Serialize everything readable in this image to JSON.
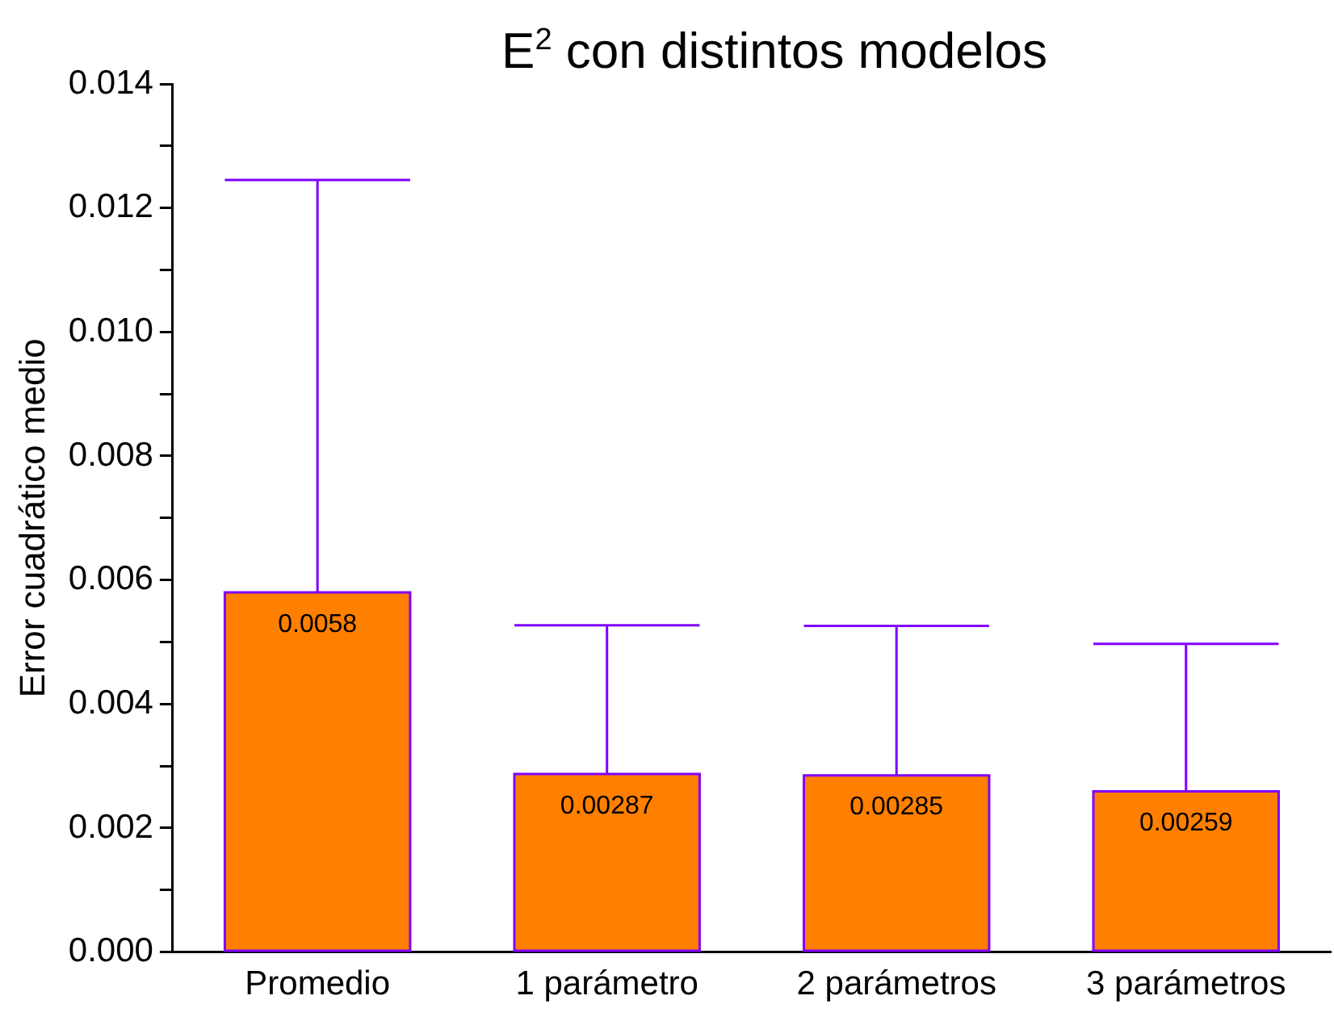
{
  "chart_data": {
    "type": "bar",
    "title": "E$^{2}$ con distintos modelos",
    "ylabel": "Error cuadrático medio",
    "categories": [
      "Promedio",
      "1 parámetro",
      "2 parámetros",
      "3 parámetros"
    ],
    "series": [
      {
        "color": "#ff7f00",
        "values": [
          0.0058,
          0.00287,
          0.00285,
          0.00259
        ],
        "errors": [
          [
            0.0058,
            0.01245
          ],
          [
            0.00287,
            0.00527
          ],
          [
            0.00285,
            0.00526
          ],
          [
            0.00259,
            0.00497
          ]
        ],
        "value_labels": [
          "0.0058",
          "0.00287",
          "0.00285",
          "0.00259"
        ]
      }
    ],
    "ylim": [
      0,
      0.014
    ],
    "yticks": [
      {
        "value": 0,
        "label": "0.000"
      },
      {
        "value": 0.001,
        "label": null
      },
      {
        "value": 0.002,
        "label": "0.002"
      },
      {
        "value": 0.003,
        "label": null
      },
      {
        "value": 0.004,
        "label": "0.004"
      },
      {
        "value": 0.005,
        "label": null
      },
      {
        "value": 0.006,
        "label": "0.006"
      },
      {
        "value": 0.007,
        "label": null
      },
      {
        "value": 0.008,
        "label": "0.008"
      },
      {
        "value": 0.009,
        "label": null
      },
      {
        "value": 0.01,
        "label": "0.010"
      },
      {
        "value": 0.011,
        "label": null
      },
      {
        "value": 0.012,
        "label": "0.012"
      },
      {
        "value": 0.013,
        "label": null
      },
      {
        "value": 0.014,
        "label": "0.014"
      }
    ],
    "grid": false,
    "legend": false
  }
}
